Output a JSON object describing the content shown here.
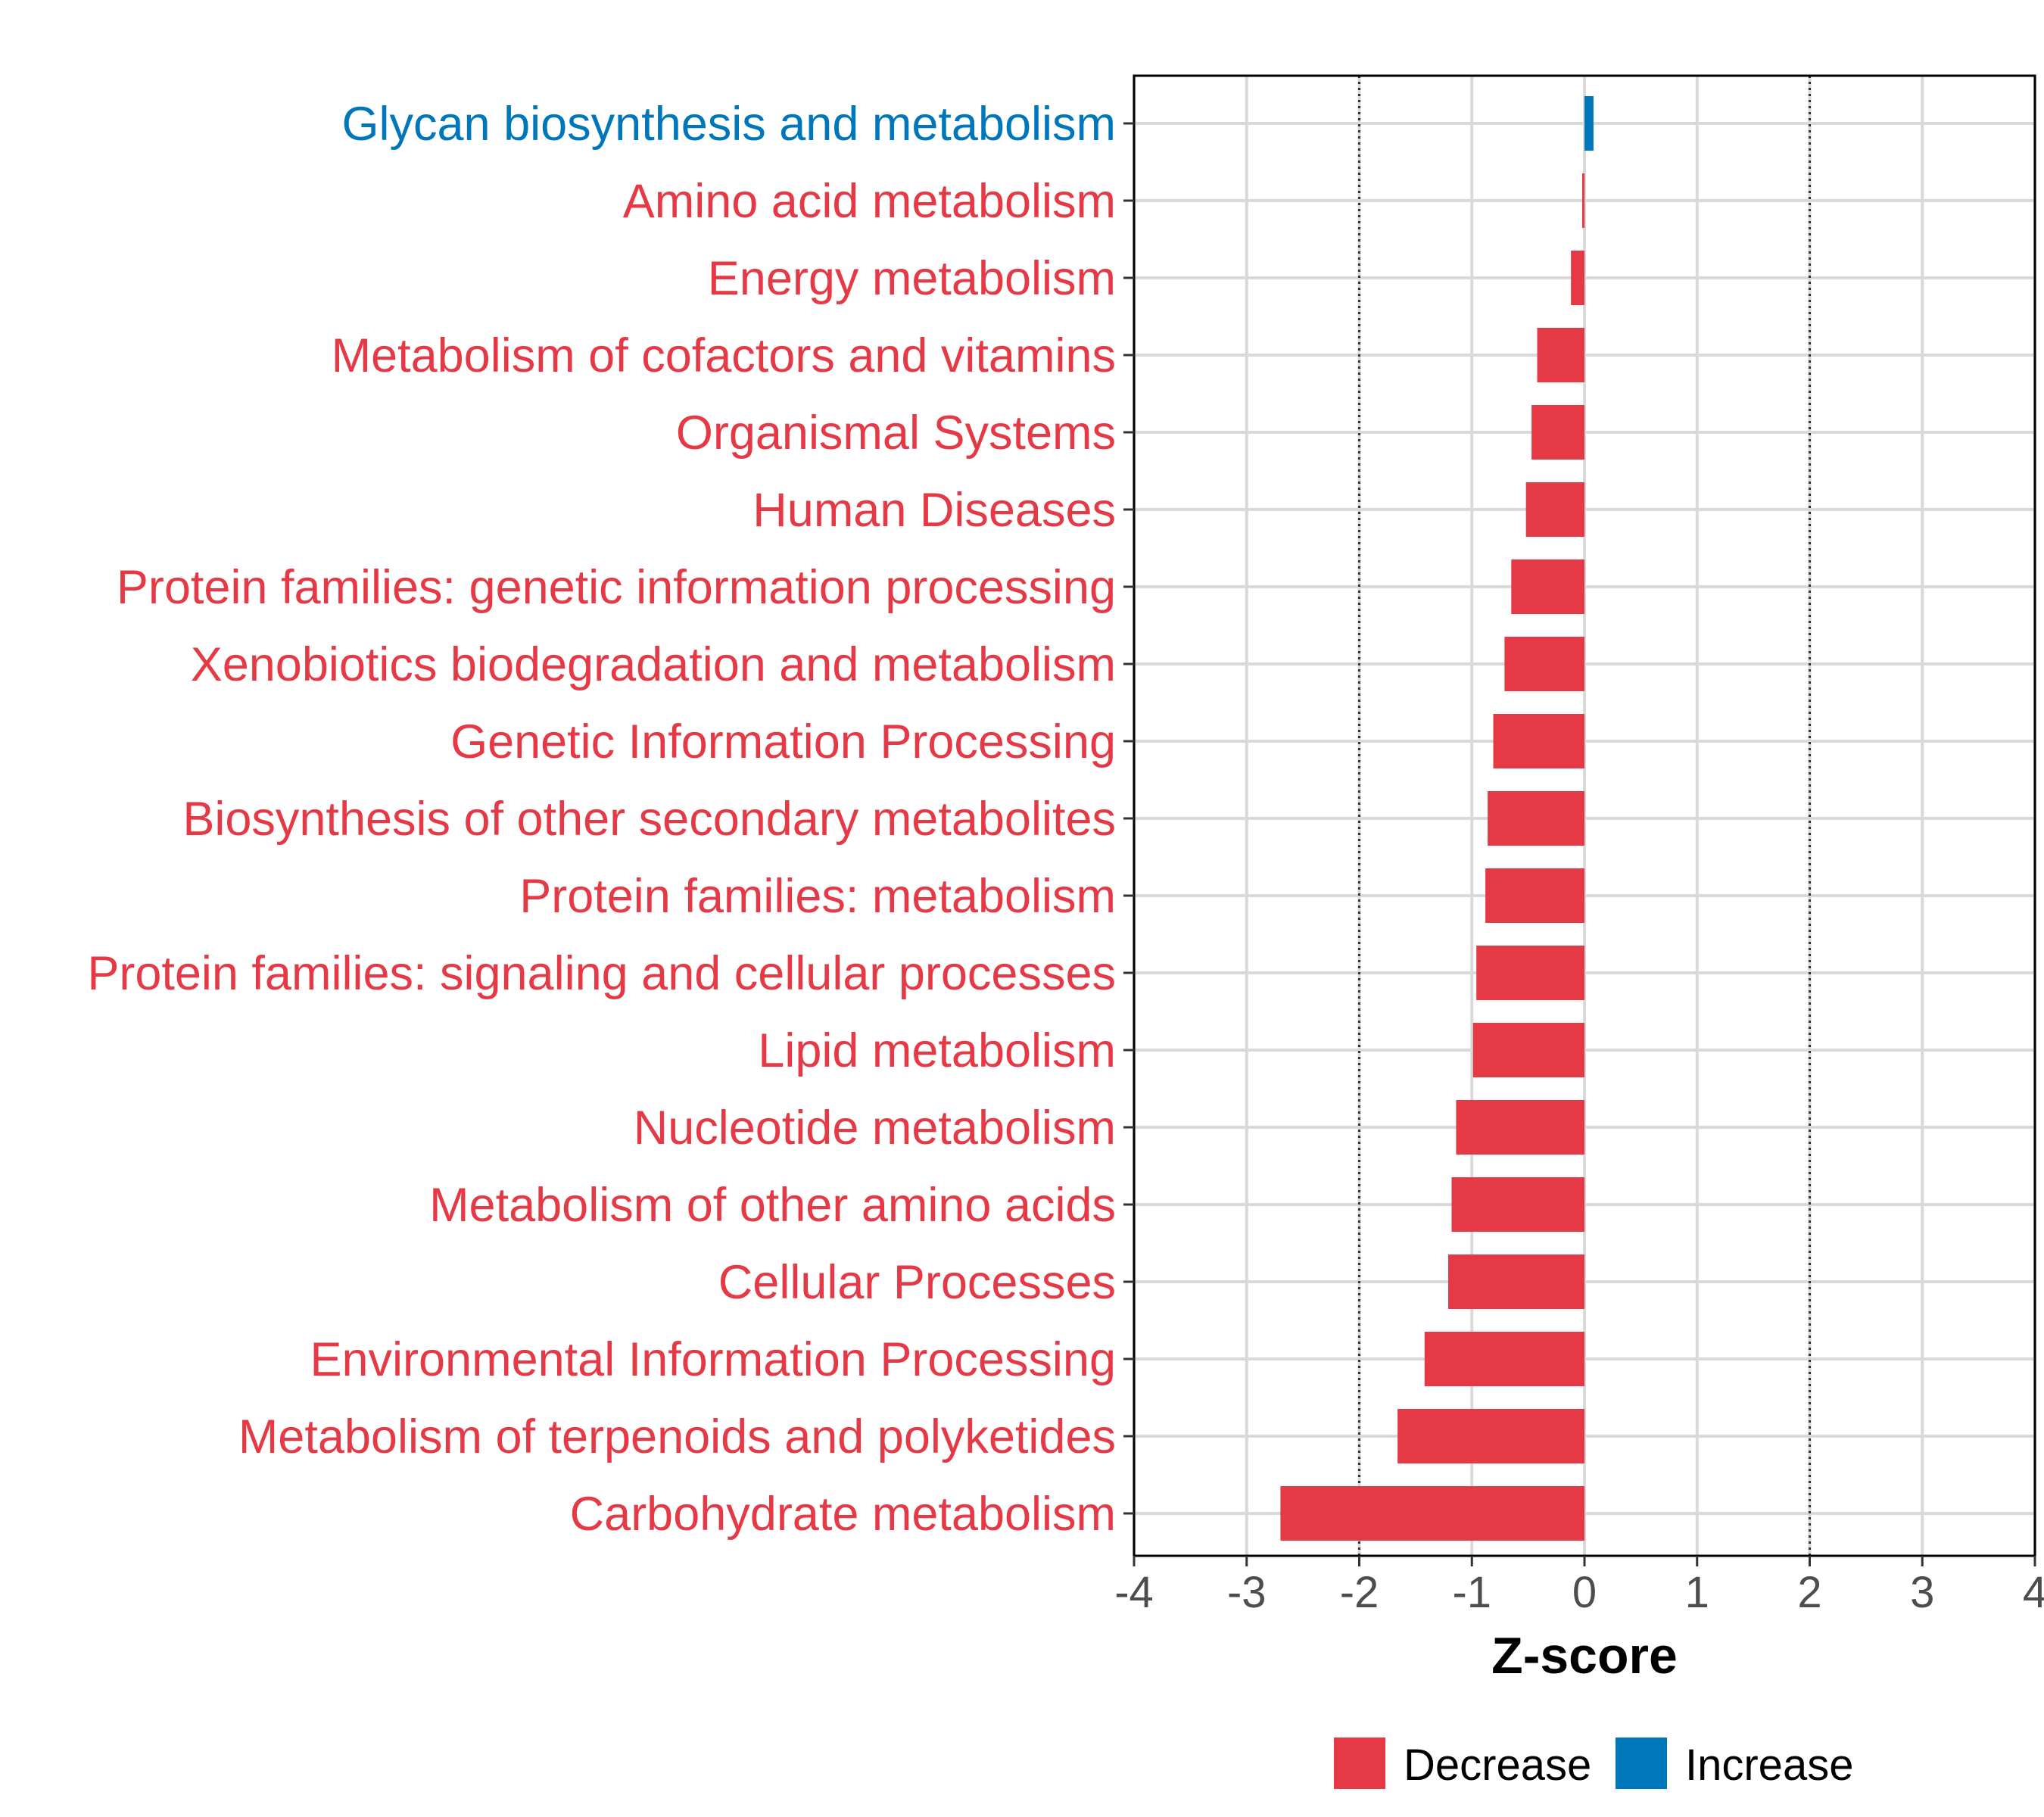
{
  "chart_data": {
    "type": "bar",
    "orientation": "horizontal",
    "xlabel": "Z-score",
    "xlim": [
      -4,
      4
    ],
    "xticks": [
      -4,
      -3,
      -2,
      -1,
      0,
      1,
      2,
      3,
      4
    ],
    "xtick_labels": [
      "-4",
      "-3",
      "-2",
      "-1",
      "0",
      "1",
      "2",
      "3",
      "4"
    ],
    "reference_lines": [
      -2,
      2
    ],
    "grid": true,
    "legend": {
      "placement": "bottom",
      "entries": [
        {
          "label": "Decrease",
          "color": "#E63946"
        },
        {
          "label": "Increase",
          "color": "#0077BB"
        }
      ]
    },
    "bars": [
      {
        "category": "Glycan biosynthesis and metabolism",
        "value": 0.08,
        "group": "Increase"
      },
      {
        "category": "Amino acid metabolism",
        "value": -0.02,
        "group": "Decrease"
      },
      {
        "category": "Energy metabolism",
        "value": -0.12,
        "group": "Decrease"
      },
      {
        "category": "Metabolism of cofactors and vitamins",
        "value": -0.42,
        "group": "Decrease"
      },
      {
        "category": "Organismal Systems",
        "value": -0.47,
        "group": "Decrease"
      },
      {
        "category": "Human Diseases",
        "value": -0.52,
        "group": "Decrease"
      },
      {
        "category": "Protein families: genetic information processing",
        "value": -0.65,
        "group": "Decrease"
      },
      {
        "category": "Xenobiotics biodegradation and metabolism",
        "value": -0.71,
        "group": "Decrease"
      },
      {
        "category": "Genetic Information Processing",
        "value": -0.81,
        "group": "Decrease"
      },
      {
        "category": "Biosynthesis of other secondary metabolites",
        "value": -0.86,
        "group": "Decrease"
      },
      {
        "category": "Protein families: metabolism",
        "value": -0.88,
        "group": "Decrease"
      },
      {
        "category": "Protein families: signaling and cellular processes",
        "value": -0.96,
        "group": "Decrease"
      },
      {
        "category": "Lipid metabolism",
        "value": -0.99,
        "group": "Decrease"
      },
      {
        "category": "Nucleotide metabolism",
        "value": -1.14,
        "group": "Decrease"
      },
      {
        "category": "Metabolism of other amino acids",
        "value": -1.18,
        "group": "Decrease"
      },
      {
        "category": "Cellular Processes",
        "value": -1.21,
        "group": "Decrease"
      },
      {
        "category": "Environmental Information Processing",
        "value": -1.42,
        "group": "Decrease"
      },
      {
        "category": "Metabolism of terpenoids and polyketides",
        "value": -1.66,
        "group": "Decrease"
      },
      {
        "category": "Carbohydrate metabolism",
        "value": -2.7,
        "group": "Decrease"
      }
    ]
  }
}
